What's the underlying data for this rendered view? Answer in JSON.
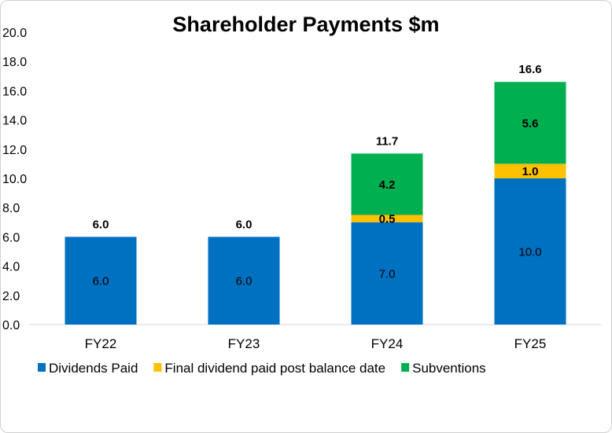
{
  "chart_data": {
    "type": "bar",
    "stacked": true,
    "title": "Shareholder Payments $m",
    "xlabel": "",
    "ylabel": "",
    "ylim": [
      0,
      20
    ],
    "yticks": [
      "0.0",
      "2.0",
      "4.0",
      "6.0",
      "8.0",
      "10.0",
      "12.0",
      "14.0",
      "16.0",
      "18.0",
      "20.0"
    ],
    "grid": false,
    "legend": "bottom",
    "categories": [
      "FY22",
      "FY23",
      "FY24",
      "FY25"
    ],
    "series": [
      {
        "name": "Dividends Paid",
        "color": "#0070C0",
        "values": [
          6.0,
          6.0,
          7.0,
          10.0
        ],
        "labels": [
          "6.0",
          "6.0",
          "7.0",
          "10.0"
        ]
      },
      {
        "name": "Final dividend paid post balance date",
        "color": "#FFC000",
        "values": [
          0,
          0,
          0.5,
          1.0
        ],
        "labels": [
          "",
          "",
          "0.5",
          "1.0"
        ]
      },
      {
        "name": "Subventions",
        "color": "#00B050",
        "values": [
          0,
          0,
          4.2,
          5.6
        ],
        "labels": [
          "",
          "",
          "4.2",
          "5.6"
        ]
      }
    ],
    "totals": [
      "6.0",
      "6.0",
      "11.7",
      "16.6"
    ]
  }
}
